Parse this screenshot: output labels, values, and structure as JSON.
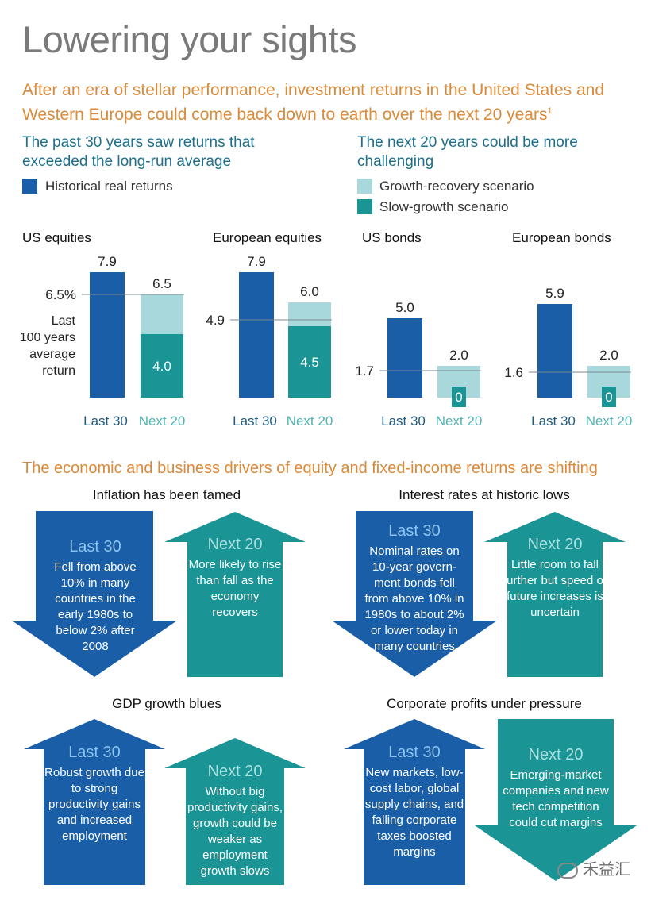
{
  "title": "Lowering your sights",
  "subtitle": "After an era of stellar performance, investment returns in the United States and Western Europe could come back down to earth over the next 20 years",
  "subtitle_footnote": "1",
  "left_heading": "The past 30 years saw returns that exceeded the long-run average",
  "right_heading": "The next 20 years could be more challenging",
  "legend": {
    "historical": "Historical real returns",
    "growth_recovery": "Growth-recovery scenario",
    "slow_growth": "Slow-growth scenario"
  },
  "colors": {
    "historical": "#1a5ea8",
    "growth_recovery": "#a8d8dc",
    "slow_growth": "#1a9494",
    "accent_orange": "#d98a3a",
    "heading_teal": "#1e6f8a"
  },
  "avg_note": [
    "Last",
    "100 years",
    "average",
    "return"
  ],
  "chart_data": [
    {
      "type": "bar",
      "title": "US equities",
      "categories": [
        "Last 30",
        "Next 20"
      ],
      "last30": 7.9,
      "next20_growth": 6.5,
      "next20_slow": 4.0,
      "avg": 6.5,
      "avg_label": "6.5%"
    },
    {
      "type": "bar",
      "title": "European equities",
      "categories": [
        "Last 30",
        "Next 20"
      ],
      "last30": 7.9,
      "next20_growth": 6.0,
      "next20_slow": 4.5,
      "avg": 4.9,
      "avg_label": "4.9"
    },
    {
      "type": "bar",
      "title": "US bonds",
      "categories": [
        "Last 30",
        "Next 20"
      ],
      "last30": 5.0,
      "next20_growth": 2.0,
      "next20_slow": 0,
      "avg": 1.7,
      "avg_label": "1.7"
    },
    {
      "type": "bar",
      "title": "European bonds",
      "categories": [
        "Last 30",
        "Next 20"
      ],
      "last30": 5.9,
      "next20_growth": 2.0,
      "next20_slow": 0,
      "avg": 1.6,
      "avg_label": "1.6"
    }
  ],
  "drivers_heading": "The economic and business drivers of equity and fixed-income returns are shifting",
  "drivers": [
    {
      "title": "Inflation has been tamed",
      "last30": {
        "label": "Last 30",
        "text": "Fell from above 10% in many countries in the early 1980s to below 2% after 2008"
      },
      "next20": {
        "label": "Next 20",
        "text": "More likely to rise than fall as the economy recovers"
      }
    },
    {
      "title": "Interest rates at historic lows",
      "last30": {
        "label": "Last 30",
        "text": "Nominal rates on 10-year govern-ment bonds fell from above 10% in 1980s to about 2% or lower today in many countries"
      },
      "next20": {
        "label": "Next 20",
        "text": "Little room to fall further but speed of future increases is uncertain"
      }
    },
    {
      "title": "GDP growth blues",
      "last30": {
        "label": "Last 30",
        "text": "Robust growth due to strong productivity gains and increased employment"
      },
      "next20": {
        "label": "Next 20",
        "text": "Without big productivity gains, growth could be weaker as employment growth slows"
      }
    },
    {
      "title": "Corporate profits under pressure",
      "last30": {
        "label": "Last 30",
        "text": "New markets, low-cost labor, global supply chains, and falling corporate taxes boosted margins"
      },
      "next20": {
        "label": "Next 20",
        "text": "Emerging-market companies and new tech competition could cut margins"
      }
    }
  ],
  "watermark": "禾益汇"
}
